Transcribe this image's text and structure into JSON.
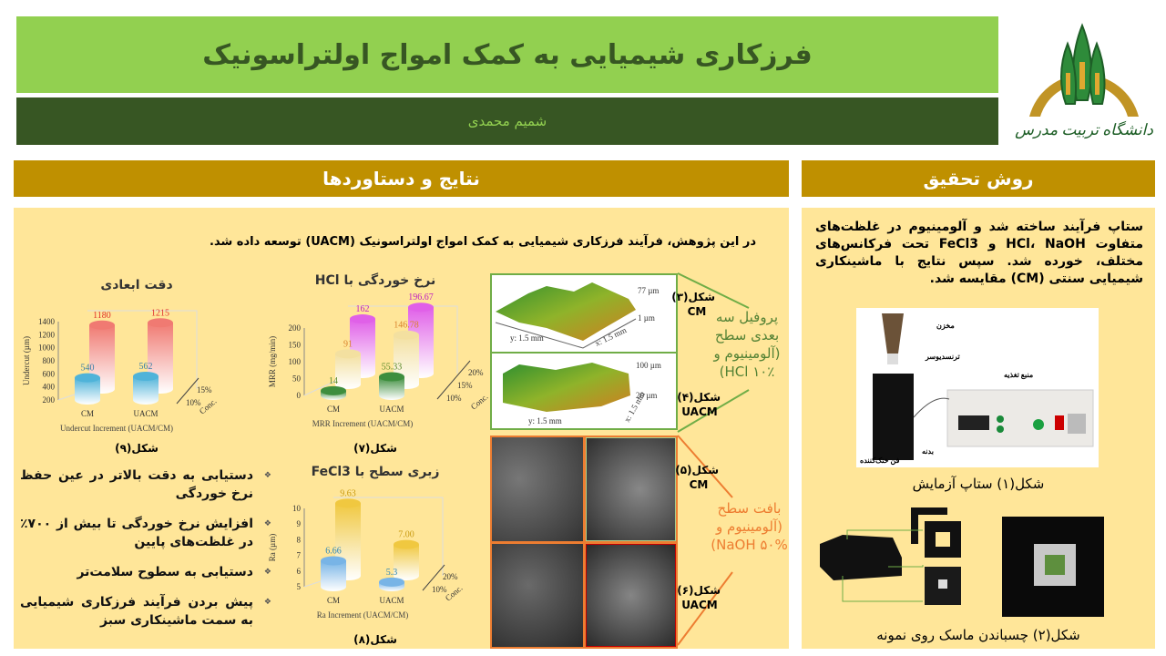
{
  "header": {
    "title": "فرزکاری شیمیایی به کمک امواج اولتراسونیک",
    "author": "شمیم محمدی",
    "logo_text": "دانشگاه تربیت مدرس"
  },
  "colors": {
    "title_bg": "#92d050",
    "author_bg": "#375623",
    "section_header": "#bf9000",
    "panel_bg": "#ffe699"
  },
  "results": {
    "heading": "نتایج و دستاوردها",
    "intro": "در این پژوهش، فرآیند فرزکاری شیمیایی به کمک امواج اولتراسونیک (UACM) توسعه داده شد.",
    "bullets": [
      "دستیابی به دقت بالاتر در عین حفظ نرخ خوردگی",
      "افزایش نرخ خوردگی تا بیش از ۷۰۰٪ در غلظت‌های پایین",
      "دستیابی به سطوح سلامت‌تر",
      "پیش بردن فرآیند فرزکاری شیمیایی به سمت ماشینکاری سبز"
    ],
    "profile": {
      "fig3_label": "شکل(۳)",
      "fig3_method": "CM",
      "fig4_label": "شکل(۴)",
      "fig4_method": "UACM",
      "callout": "پروفیل سه بعدی سطح (آلومینیوم و HCl ۱۰٪)",
      "img1_z_top": "77 µm",
      "img1_z_bottom": "1 µm",
      "img2_z_top": "100 µm",
      "img2_z_bottom": "20 µm",
      "axis_x": "x: 1.5 mm",
      "axis_y": "y: 1.5 mm"
    },
    "sem": {
      "fig5_label": "شکل(۵)",
      "fig5_method": "CM",
      "fig6_label": "شکل(۶)",
      "fig6_method": "UACM",
      "callout": "بافت سطح (آلومینیوم و NaOH ۵۰%)"
    }
  },
  "method": {
    "heading": "روش تحقیق",
    "text": "ستاپ فرآیند ساخته شد و آلومینیوم در غلظت‌های متفاوت HCl، NaOH و FeCl3 تحت فرکانس‌های مختلف، خورده شد. سپس نتایج با ماشینکاری شیمیایی سنتی (CM) مقایسه شد.",
    "setup_labels": {
      "tank": "مخزن",
      "transducer": "ترنسدیوسر",
      "power": "منبع تغذیه",
      "body": "بدنه",
      "fan": "فن خنک‌کننده"
    },
    "fig1_caption": "شکل(۱) ستاپ آزمایش",
    "fig2_caption": "شکل(۲) چسباندن ماسک روی نمونه"
  },
  "chart_data": [
    {
      "type": "bar",
      "title": "دقت ابعادی",
      "caption": "شکل(۹)",
      "ylabel": "Undercut (µm)",
      "xlabel": "Undercut  Increment (UACM/CM)",
      "depth_label": "Conc.",
      "categories": [
        "CM",
        "UACM"
      ],
      "ylim": [
        200,
        1400
      ],
      "yticks": [
        200,
        400,
        600,
        800,
        1000,
        1200,
        1400
      ],
      "series": [
        {
          "name": "10%",
          "values": [
            540,
            562
          ],
          "color": "#4fb3d9",
          "label_color": "#3a7fa8"
        },
        {
          "name": "15%",
          "values": [
            1180,
            1215
          ],
          "color": "#f07a72",
          "label_color": "#e0302a"
        }
      ]
    },
    {
      "type": "bar",
      "title": "نرخ خوردگی با HCl",
      "caption": "شکل(۷)",
      "ylabel": "MRR (mg/min)",
      "xlabel": "MRR Increment (UACM/CM)",
      "depth_label": "Conc.",
      "categories": [
        "CM",
        "UACM"
      ],
      "ylim": [
        0,
        200
      ],
      "yticks": [
        0,
        50,
        100,
        150,
        200
      ],
      "series": [
        {
          "name": "10%",
          "values": [
            14,
            55.33
          ],
          "color": "#3e8e3e",
          "label_color": "#5a8a2a"
        },
        {
          "name": "15%",
          "values": [
            91,
            146.78
          ],
          "color": "#f3e0a0",
          "label_color": "#d9822b"
        },
        {
          "name": "20%",
          "values": [
            162,
            196.67
          ],
          "color": "#e060e8",
          "label_color": "#c020c0"
        }
      ]
    },
    {
      "type": "bar",
      "title": "زبری سطح با FeCl3",
      "caption": "شکل(۸)",
      "ylabel": "Ra (µm)",
      "xlabel": "Ra Increment (UACM/CM)",
      "depth_label": "Conc.",
      "categories": [
        "CM",
        "UACM"
      ],
      "ylim": [
        5,
        10
      ],
      "yticks": [
        5,
        6,
        7,
        8,
        9,
        10
      ],
      "series": [
        {
          "name": "10%",
          "values": [
            6.66,
            5.3
          ],
          "color": "#78b4e6",
          "label_color": "#2e86b8"
        },
        {
          "name": "20%",
          "values": [
            9.63,
            7.0
          ],
          "color": "#f0c840",
          "label_color": "#c89a10"
        }
      ]
    }
  ]
}
